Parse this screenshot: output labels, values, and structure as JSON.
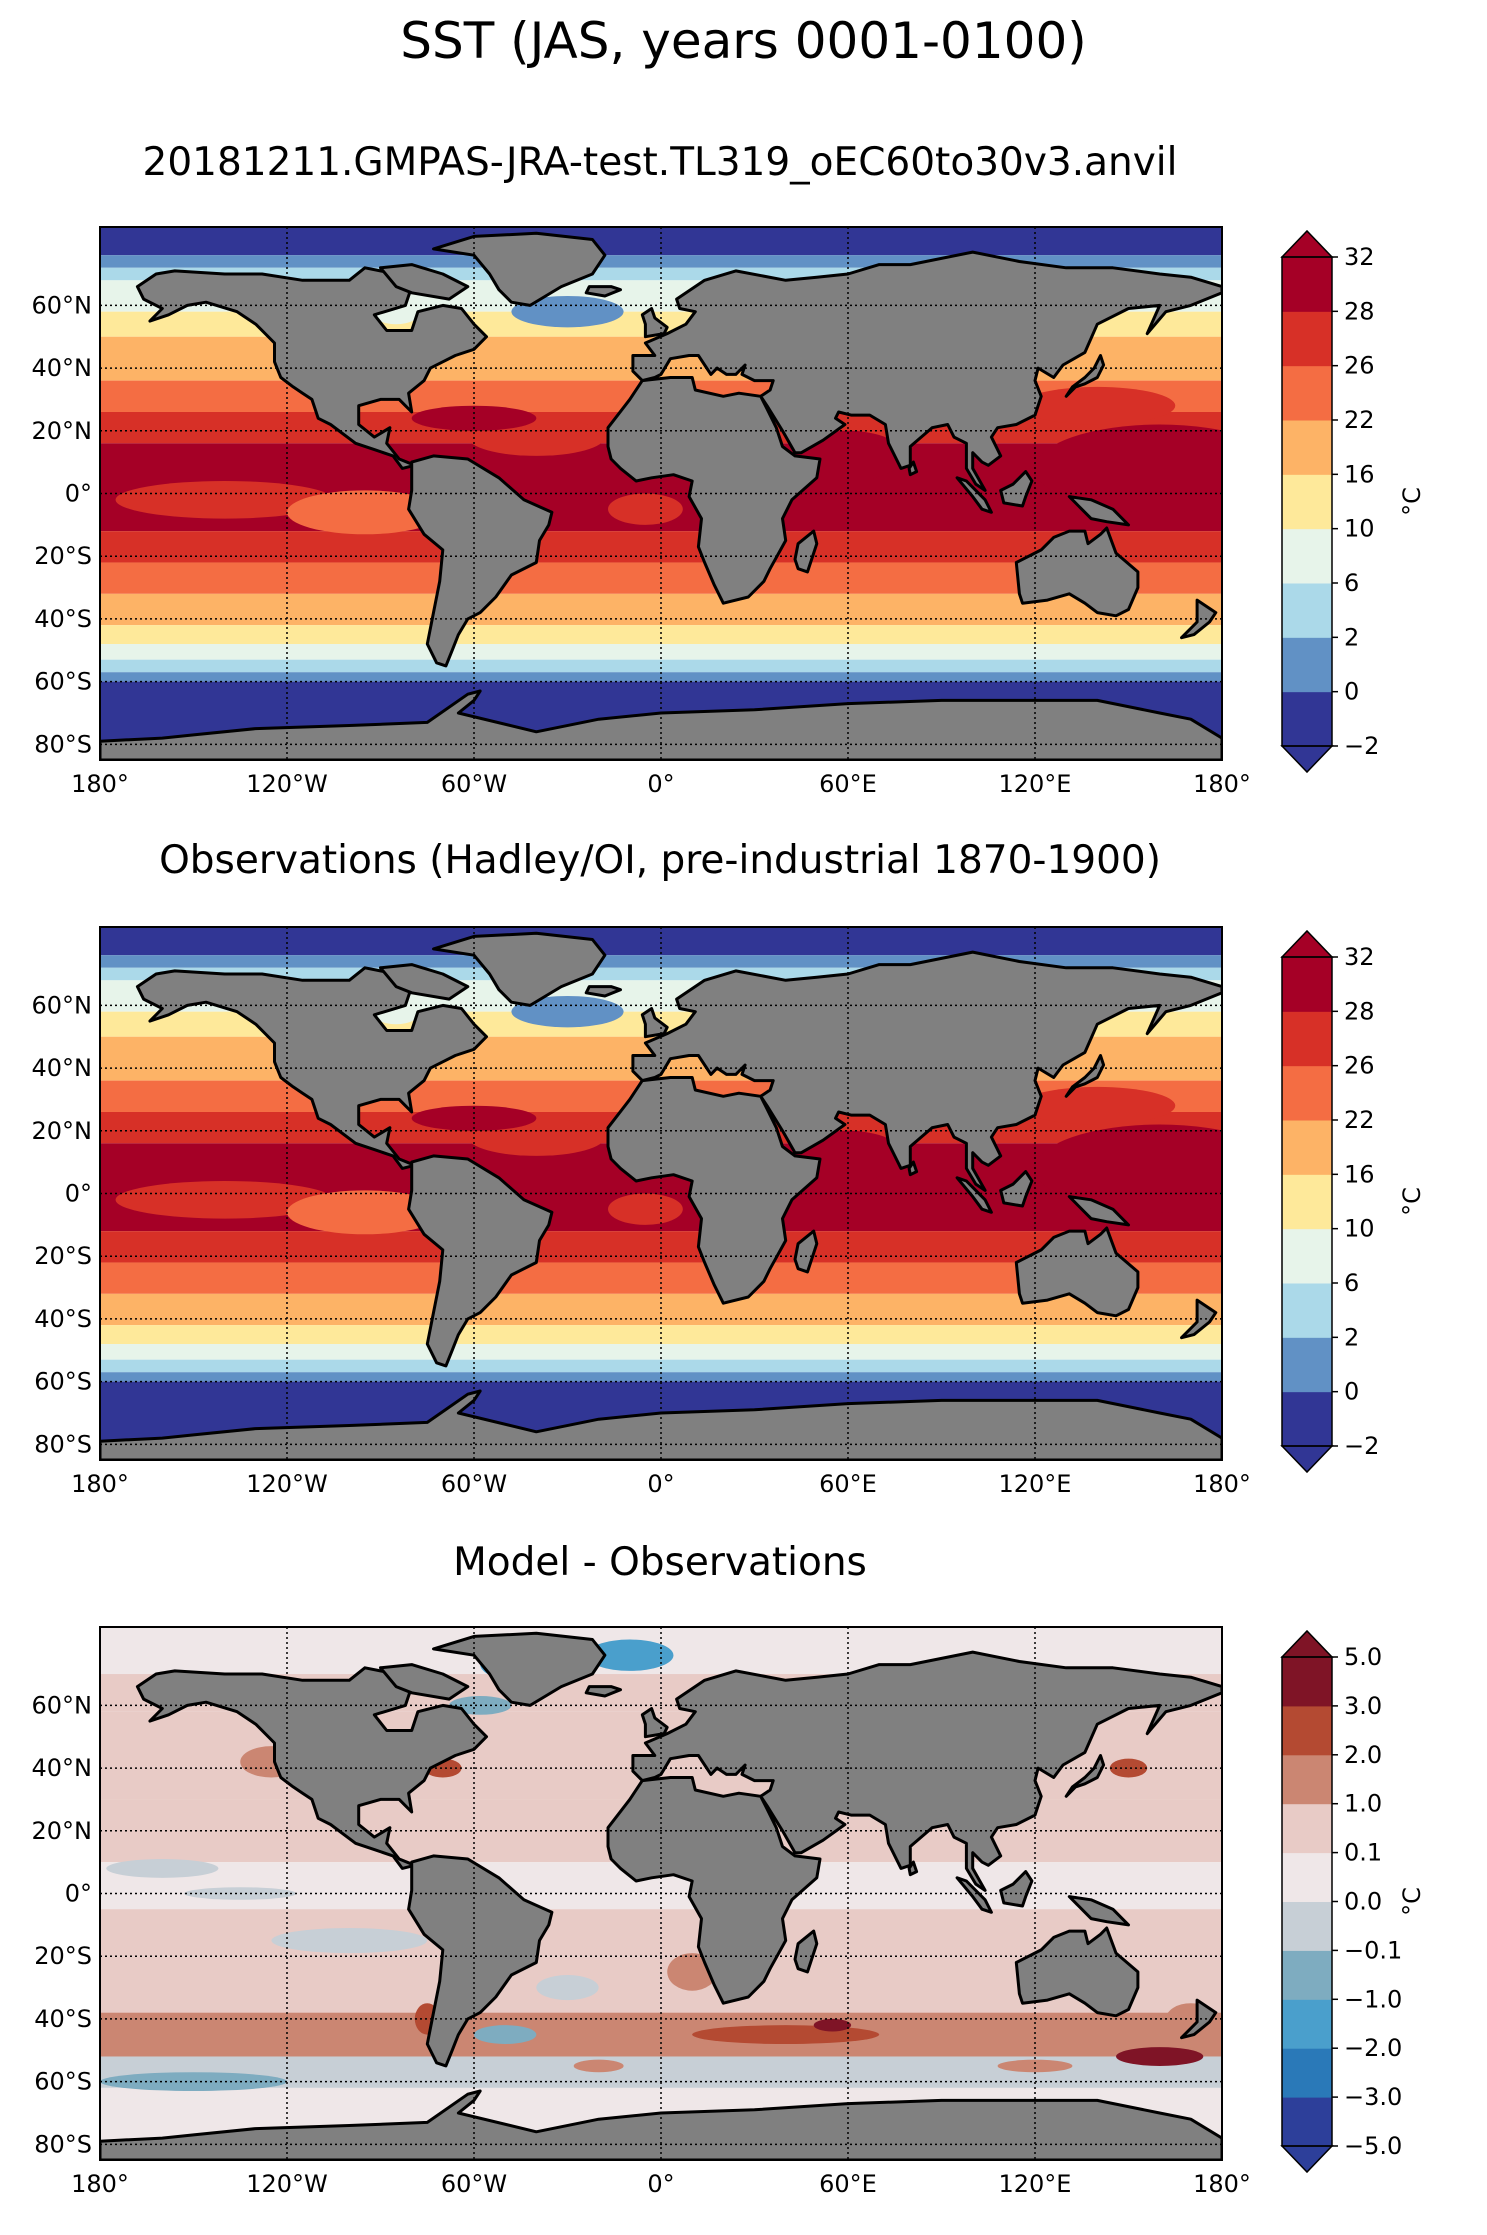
{
  "figure": {
    "suptitle": "SST (JAS, years 0001-0100)"
  },
  "panels": [
    {
      "id": "model",
      "title": "20181211.GMPAS-JRA-test.TL319_oEC60to30v3.anvil",
      "colorbar_ticks": [
        "−2",
        "0",
        "2",
        "6",
        "10",
        "16",
        "22",
        "26",
        "28",
        "32"
      ],
      "colorbar_colors": [
        "#313695",
        "#6191c5",
        "#abd9e9",
        "#e7f4ea",
        "#fee99a",
        "#fdb366",
        "#f46d43",
        "#d73027",
        "#a50026"
      ],
      "colorbar_label": "°C"
    },
    {
      "id": "obs",
      "title": "Observations (Hadley/OI, pre-industrial 1870-1900)",
      "colorbar_ticks": [
        "−2",
        "0",
        "2",
        "6",
        "10",
        "16",
        "22",
        "26",
        "28",
        "32"
      ],
      "colorbar_colors": [
        "#313695",
        "#6191c5",
        "#abd9e9",
        "#e7f4ea",
        "#fee99a",
        "#fdb366",
        "#f46d43",
        "#d73027",
        "#a50026"
      ],
      "colorbar_label": "°C"
    },
    {
      "id": "bias",
      "title": "Model - Observations",
      "colorbar_ticks": [
        "−5.0",
        "−3.0",
        "−2.0",
        "−1.0",
        "−0.1",
        "0.0",
        "0.1",
        "1.0",
        "2.0",
        "3.0",
        "5.0"
      ],
      "colorbar_colors": [
        "#2d3f9a",
        "#2a79b8",
        "#4a9fcc",
        "#7eacc0",
        "#c7cfd6",
        "#efe7e8",
        "#e8cbc6",
        "#cb8672",
        "#b44a32",
        "#7f1426"
      ],
      "colorbar_label": "°C"
    }
  ],
  "lat_labels": [
    "60°N",
    "40°N",
    "20°N",
    "0°",
    "20°S",
    "40°S",
    "60°S",
    "80°S"
  ],
  "lon_labels": [
    "180°",
    "120°W",
    "60°W",
    "0°",
    "60°E",
    "120°E",
    "180°"
  ],
  "chart_data": [
    {
      "type": "heatmap",
      "title": "20181211.GMPAS-JRA-test.TL319_oEC60to30v3.anvil",
      "variable": "SST",
      "units": "°C",
      "levels": [
        -2,
        0,
        2,
        6,
        10,
        16,
        22,
        26,
        28,
        32
      ],
      "lon_range": [
        -180,
        180
      ],
      "lat_range": [
        -85,
        85
      ],
      "zonal_mean_profile": {
        "lat": [
          80,
          70,
          60,
          50,
          40,
          30,
          20,
          10,
          0,
          -10,
          -20,
          -30,
          -40,
          -50,
          -60,
          -70,
          -80
        ],
        "sst": [
          -1.5,
          2,
          6,
          12,
          18,
          24,
          27,
          28.5,
          27,
          26,
          23,
          19,
          14,
          8,
          2,
          -1.5,
          -2
        ]
      }
    },
    {
      "type": "heatmap",
      "title": "Observations (Hadley/OI, pre-industrial 1870-1900)",
      "variable": "SST",
      "units": "°C",
      "levels": [
        -2,
        0,
        2,
        6,
        10,
        16,
        22,
        26,
        28,
        32
      ],
      "lon_range": [
        -180,
        180
      ],
      "lat_range": [
        -85,
        85
      ],
      "zonal_mean_profile": {
        "lat": [
          80,
          70,
          60,
          50,
          40,
          30,
          20,
          10,
          0,
          -10,
          -20,
          -30,
          -40,
          -50,
          -60,
          -70,
          -80
        ],
        "sst": [
          -1.5,
          1,
          6,
          11,
          17,
          24,
          27,
          28.5,
          27,
          26,
          23,
          19,
          14,
          7,
          1,
          -1.5,
          -2
        ]
      }
    },
    {
      "type": "heatmap",
      "title": "Model - Observations",
      "variable": "SST bias",
      "units": "°C",
      "levels": [
        -5,
        -3,
        -2,
        -1,
        -0.1,
        0,
        0.1,
        1,
        2,
        3,
        5
      ],
      "lon_range": [
        -180,
        180
      ],
      "lat_range": [
        -85,
        85
      ]
    }
  ]
}
